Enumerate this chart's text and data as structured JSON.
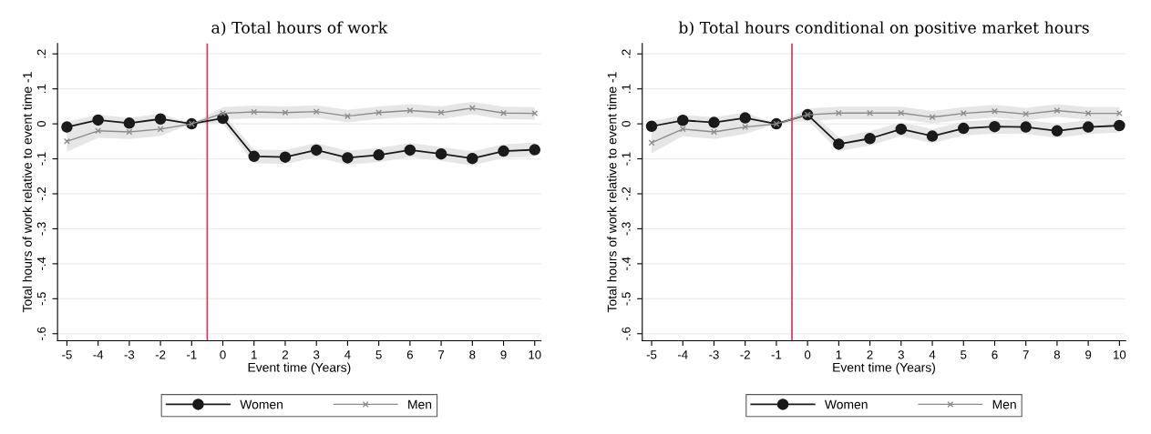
{
  "chart_data": [
    {
      "type": "line",
      "title": "a) Total hours of work",
      "xlabel": "Event time (Years)",
      "ylabel": "Total hours of work relative to event time -1",
      "x": [
        -5,
        -4,
        -3,
        -2,
        -1,
        0,
        1,
        2,
        3,
        4,
        5,
        6,
        7,
        8,
        9,
        10
      ],
      "xlim": [
        -5.3,
        10.2
      ],
      "xticks": [
        -5,
        -4,
        -3,
        -2,
        -1,
        0,
        1,
        2,
        3,
        4,
        5,
        6,
        7,
        8,
        9,
        10
      ],
      "ylim": [
        -0.62,
        0.23
      ],
      "yticks": [
        {
          "value": 0.2,
          "label": ".2"
        },
        {
          "value": 0.1,
          "label": ".1"
        },
        {
          "value": 0,
          "label": "0"
        },
        {
          "value": -0.1,
          "label": "-.1"
        },
        {
          "value": -0.2,
          "label": "-.2"
        },
        {
          "value": -0.3,
          "label": "-.3"
        },
        {
          "value": -0.4,
          "label": "-.4"
        },
        {
          "value": -0.5,
          "label": "-.5"
        },
        {
          "value": -0.6,
          "label": "-.6"
        }
      ],
      "grid": "y",
      "legend": "bottom",
      "ref_lines": [
        {
          "axis": "x",
          "value": -0.5,
          "color": "#d6335c"
        }
      ],
      "series": [
        {
          "name": "Women",
          "color": "#1a1a1a",
          "marker": "circle",
          "values": [
            -0.009,
            0.011,
            0.002,
            0.014,
            0,
            0.016,
            -0.093,
            -0.095,
            -0.075,
            -0.097,
            -0.089,
            -0.075,
            -0.086,
            -0.099,
            -0.078,
            -0.074
          ],
          "lower": [
            -0.024,
            -0.004,
            -0.013,
            -0.001,
            0,
            0.001,
            -0.113,
            -0.115,
            -0.095,
            -0.117,
            -0.109,
            -0.095,
            -0.106,
            -0.119,
            -0.098,
            -0.094
          ],
          "upper": [
            0.006,
            0.026,
            0.017,
            0.029,
            0,
            0.031,
            -0.073,
            -0.075,
            -0.055,
            -0.077,
            -0.069,
            -0.055,
            -0.066,
            -0.079,
            -0.058,
            -0.054
          ]
        },
        {
          "name": "Men",
          "color": "#8c8c8c",
          "marker": "cross",
          "values": [
            -0.05,
            -0.02,
            -0.023,
            -0.015,
            0,
            0.03,
            0.034,
            0.032,
            0.035,
            0.022,
            0.032,
            0.038,
            0.032,
            0.045,
            0.031,
            0.03
          ],
          "lower": [
            -0.08,
            -0.04,
            -0.043,
            -0.035,
            0,
            0.012,
            0.016,
            0.014,
            0.017,
            0.004,
            0.014,
            0.02,
            0.014,
            0.027,
            0.013,
            0.012
          ],
          "upper": [
            -0.02,
            0,
            -0.003,
            0.005,
            0,
            0.048,
            0.052,
            0.05,
            0.053,
            0.04,
            0.05,
            0.056,
            0.05,
            0.063,
            0.049,
            0.048
          ]
        }
      ]
    },
    {
      "type": "line",
      "title": "b) Total hours conditional on positive market hours",
      "xlabel": "Event time (Years)",
      "ylabel": "Total hours of work relative to event time -1",
      "x": [
        -5,
        -4,
        -3,
        -2,
        -1,
        0,
        1,
        2,
        3,
        4,
        5,
        6,
        7,
        8,
        9,
        10
      ],
      "xlim": [
        -5.3,
        10.2
      ],
      "xticks": [
        -5,
        -4,
        -3,
        -2,
        -1,
        0,
        1,
        2,
        3,
        4,
        5,
        6,
        7,
        8,
        9,
        10
      ],
      "ylim": [
        -0.62,
        0.23
      ],
      "yticks": [
        {
          "value": 0.2,
          "label": ".2"
        },
        {
          "value": 0.1,
          "label": ".1"
        },
        {
          "value": 0,
          "label": "0"
        },
        {
          "value": -0.1,
          "label": "-.1"
        },
        {
          "value": -0.2,
          "label": "-.2"
        },
        {
          "value": -0.3,
          "label": "-.3"
        },
        {
          "value": -0.4,
          "label": "-.4"
        },
        {
          "value": -0.5,
          "label": "-.5"
        },
        {
          "value": -0.6,
          "label": "-.6"
        }
      ],
      "grid": "y",
      "legend": "bottom",
      "ref_lines": [
        {
          "axis": "x",
          "value": -0.5,
          "color": "#d6335c"
        }
      ],
      "series": [
        {
          "name": "Women",
          "color": "#1a1a1a",
          "marker": "circle",
          "values": [
            -0.007,
            0.01,
            0.004,
            0.017,
            0,
            0.026,
            -0.058,
            -0.042,
            -0.015,
            -0.035,
            -0.013,
            -0.008,
            -0.009,
            -0.02,
            -0.009,
            -0.005
          ],
          "lower": [
            -0.022,
            -0.005,
            -0.011,
            0.002,
            0,
            0.011,
            -0.078,
            -0.062,
            -0.035,
            -0.055,
            -0.033,
            -0.028,
            -0.029,
            -0.04,
            -0.029,
            -0.025
          ],
          "upper": [
            0.008,
            0.025,
            0.019,
            0.032,
            0,
            0.041,
            -0.038,
            -0.022,
            0.005,
            -0.015,
            0.007,
            0.012,
            0.011,
            0,
            0.011,
            0.015
          ]
        },
        {
          "name": "Men",
          "color": "#8c8c8c",
          "marker": "cross",
          "values": [
            -0.054,
            -0.015,
            -0.023,
            -0.009,
            0,
            0.026,
            0.031,
            0.031,
            0.031,
            0.019,
            0.03,
            0.036,
            0.028,
            0.038,
            0.03,
            0.03
          ],
          "lower": [
            -0.084,
            -0.035,
            -0.043,
            -0.029,
            0,
            0.008,
            0.013,
            0.013,
            0.013,
            0.001,
            0.012,
            0.018,
            0.01,
            0.02,
            0.012,
            0.012
          ],
          "upper": [
            -0.024,
            0.005,
            -0.003,
            0.011,
            0,
            0.044,
            0.049,
            0.049,
            0.049,
            0.037,
            0.048,
            0.054,
            0.046,
            0.056,
            0.048,
            0.048
          ]
        }
      ]
    }
  ]
}
